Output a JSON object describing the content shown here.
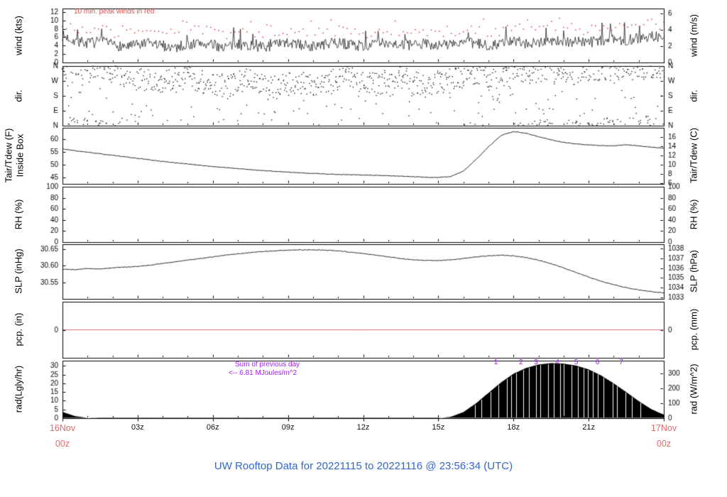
{
  "page": {
    "title": "UW Rooftop Data for 20221115 to 20221116 @ 23:56:34 (UTC)",
    "title_color": "#3366cc",
    "background": "#ffffff"
  },
  "x_axis": {
    "tick_labels": [
      "03z",
      "06z",
      "09z",
      "12z",
      "15z",
      "18z",
      "21z"
    ],
    "tick_hours": [
      3,
      6,
      9,
      12,
      15,
      18,
      21
    ],
    "range_hours": [
      0,
      24
    ],
    "start_date": "16Nov",
    "start_time": "00z",
    "end_date": "17Nov",
    "end_time": "00z",
    "date_color": "#e06a6a"
  },
  "annotations": {
    "wind_note": "10 min. peak winds in red",
    "wind_note_color": "#e05555",
    "rad_sum_line1": "Sum of previous day",
    "rad_sum_line2": "<-- 6.81 MJoules/m^2",
    "rad_sum_color": "#a020f0",
    "mj_markers": [
      "1",
      "2",
      "3",
      "4",
      "5",
      "6",
      "7"
    ],
    "mj_marker_hours": [
      17.3,
      18.3,
      18.9,
      19.75,
      20.5,
      21.35,
      22.3
    ]
  },
  "chart_data": [
    {
      "id": "wind",
      "type": "line+scatter",
      "ylabel_left": "wind (kts)",
      "ylabel_right": "wind (m/s)",
      "ylim_left": [
        0,
        12.8
      ],
      "yticks_left": [
        0,
        2,
        4,
        6,
        8,
        10,
        12
      ],
      "ylim_right": [
        0,
        6.585
      ],
      "yticks_right": [
        0,
        2,
        4,
        6
      ],
      "sample_interval_hours": 0.5,
      "avg_kts": [
        6.3,
        5.2,
        4.6,
        4.9,
        4.2,
        3.8,
        4.1,
        4.5,
        4.0,
        3.6,
        4.2,
        4.6,
        4.1,
        3.7,
        4.3,
        4.0,
        3.6,
        4.2,
        4.6,
        4.2,
        3.8,
        4.3,
        4.7,
        4.2,
        3.9,
        4.4,
        4.8,
        4.3,
        4.0,
        4.5,
        4.1,
        4.4,
        4.8,
        4.4,
        4.1,
        4.6,
        5.0,
        4.6,
        4.9,
        5.3,
        4.8,
        5.1,
        4.7,
        5.2,
        5.6,
        5.2,
        5.8,
        6.4,
        5.6
      ],
      "noise_kts": 1.3,
      "peak_offset_kts": 3.0,
      "peak_noise_kts": 1.3,
      "line_color": "#000000",
      "peak_color": "#cc2222"
    },
    {
      "id": "dir",
      "type": "scatter",
      "ylabel_left": "dir.",
      "ylabel_right": "dir.",
      "ylim_left": [
        0,
        360
      ],
      "yticks_left": [
        0,
        90,
        180,
        270,
        360
      ],
      "ytick_labels_left": [
        "N",
        "E",
        "S",
        "W",
        "N"
      ],
      "ylim_right": [
        0,
        360
      ],
      "yticks_right": [
        0,
        90,
        180,
        270,
        360
      ],
      "ytick_labels_right": [
        "N",
        "E",
        "S",
        "W",
        "N"
      ],
      "sample_interval_hours": 0.5,
      "mean_deg": [
        350,
        348,
        345,
        340,
        330,
        300,
        280,
        270,
        260,
        280,
        300,
        270,
        250,
        240,
        260,
        280,
        250,
        230,
        250,
        270,
        240,
        260,
        280,
        300,
        270,
        250,
        270,
        290,
        260,
        240,
        260,
        280,
        300,
        320,
        300,
        280,
        300,
        320,
        340,
        320,
        300,
        320,
        335,
        345,
        330,
        340,
        350,
        345,
        340
      ],
      "spread_deg": 70,
      "point_color": "#000000"
    },
    {
      "id": "tair",
      "type": "line",
      "ylabel_left": "Tair/Tdew (F)",
      "ylabel_left2": "Inside Box",
      "ylabel_right": "Tair/Tdew (C)",
      "ylim_left": [
        42.5,
        64.5
      ],
      "yticks_left": [
        45,
        50,
        55,
        60
      ],
      "ylim_right": [
        5.83,
        18.06
      ],
      "yticks_right": [
        6,
        8,
        10,
        12,
        14,
        16
      ],
      "sample_interval_hours": 0.5,
      "temp_f": [
        56.2,
        55.5,
        54.9,
        54.3,
        53.7,
        53.1,
        52.5,
        51.9,
        51.3,
        50.8,
        50.3,
        49.8,
        49.3,
        48.9,
        48.5,
        48.1,
        47.7,
        47.4,
        47.1,
        46.8,
        46.6,
        46.4,
        46.2,
        46.1,
        46.0,
        45.8,
        45.7,
        45.5,
        45.3,
        45.1,
        45.0,
        45.4,
        47.5,
        52.0,
        57.0,
        61.5,
        63.0,
        62.4,
        61.0,
        59.8,
        58.8,
        58.2,
        57.8,
        57.5,
        57.4,
        57.9,
        57.4,
        56.9,
        56.5
      ],
      "line_color": "#000000"
    },
    {
      "id": "rh",
      "type": "line",
      "ylabel_left": "RH (%)",
      "ylabel_right": "RH (%)",
      "ylim_left": [
        0,
        100
      ],
      "yticks_left": [
        0,
        20,
        40,
        60,
        80,
        100
      ],
      "ylim_right": [
        0,
        100
      ],
      "yticks_right": [
        0,
        20,
        40,
        60,
        80,
        100
      ],
      "values": []
    },
    {
      "id": "slp",
      "type": "line",
      "ylabel_left": "SLP (inHg)",
      "ylabel_right": "SLP (hPa)",
      "ylim_left": [
        30.5,
        30.665
      ],
      "yticks_left": [
        30.55,
        30.6,
        30.65
      ],
      "ytick_labels_left": [
        "30.55",
        "30.60",
        "30.65"
      ],
      "ylim_right": [
        1032.85,
        1038.44
      ],
      "yticks_right": [
        1033,
        1034,
        1035,
        1036,
        1037,
        1038
      ],
      "sample_interval_hours": 0.5,
      "slp_inhg": [
        30.59,
        30.588,
        30.592,
        30.59,
        30.594,
        30.596,
        30.598,
        30.602,
        30.607,
        30.612,
        30.617,
        30.622,
        30.627,
        30.632,
        30.636,
        30.64,
        30.643,
        30.645,
        30.647,
        30.648,
        30.648,
        30.647,
        30.645,
        30.641,
        30.637,
        30.632,
        30.627,
        30.622,
        30.618,
        30.616,
        30.616,
        30.618,
        30.622,
        30.627,
        30.63,
        30.632,
        30.63,
        30.625,
        30.617,
        30.606,
        30.594,
        30.58,
        30.566,
        30.553,
        30.543,
        30.534,
        30.527,
        30.522,
        30.518
      ],
      "line_color": "#000000"
    },
    {
      "id": "pcp",
      "type": "line",
      "ylabel_left": "pcp. (in)",
      "ylabel_right": "pcp. (mm)",
      "ylim_left": [
        -1,
        1
      ],
      "yticks_left": [
        0
      ],
      "ytick_labels_left": [
        "0"
      ],
      "ylim_right": [
        -1,
        1
      ],
      "yticks_right": [
        0
      ],
      "ytick_labels_right": [
        "0"
      ],
      "constant_value": 0,
      "line_color": "#e06a6a"
    },
    {
      "id": "rad",
      "type": "area",
      "ylabel_left": "rad(Lgly/hr)",
      "ylabel_right": "rad (W/m^2)",
      "ylim_left": [
        0,
        33
      ],
      "yticks_left": [
        0,
        5,
        10,
        15,
        20,
        25,
        30
      ],
      "ylim_right": [
        0,
        383.8
      ],
      "yticks_right": [
        0,
        100,
        200,
        300
      ],
      "sample_interval_hours": 0.5,
      "ly_per_hr": [
        3.6,
        1.2,
        0.2,
        0,
        0,
        0,
        0,
        0,
        0,
        0,
        0,
        0,
        0,
        0,
        0,
        0,
        0,
        0,
        0,
        0,
        0,
        0,
        0,
        0,
        0,
        0,
        0,
        0,
        0,
        0,
        0,
        0.8,
        3.5,
        8.5,
        14.5,
        20.5,
        25.5,
        28.8,
        30.8,
        31.6,
        31.3,
        30.2,
        28.0,
        24.5,
        20.0,
        15.0,
        9.8,
        5.2,
        2.0
      ],
      "fill_color": "#000000"
    }
  ]
}
